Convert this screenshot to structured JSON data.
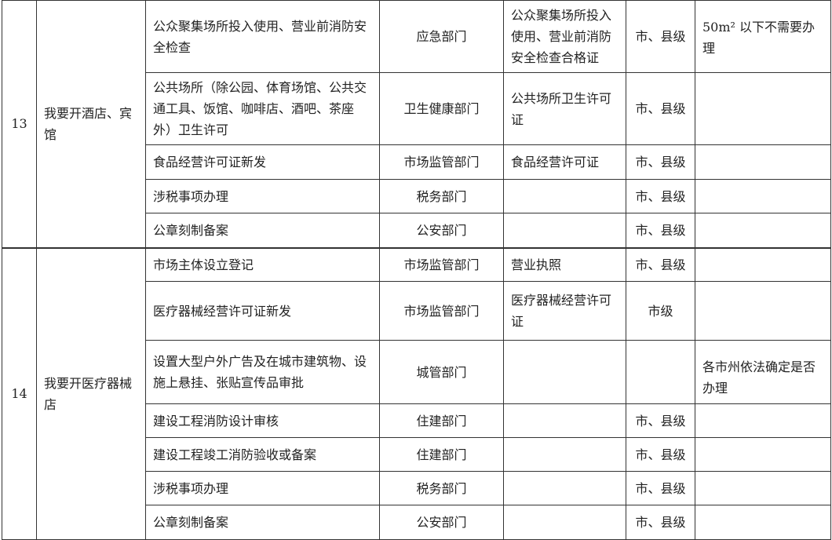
{
  "groups": [
    {
      "no": "13",
      "title": "我要开酒店、宾馆",
      "rows": [
        {
          "item": "公众聚集场所投入使用、营业前消防安全检查",
          "dept": "应急部门",
          "cert": "公众聚集场所投入使用、营业前消防安全检查合格证",
          "level": "市、县级",
          "note": "50m² 以下不需要办理"
        },
        {
          "item": "公共场所（除公园、体育场馆、公共交通工具、饭馆、咖啡店、酒吧、茶座外）卫生许可",
          "dept": "卫生健康部门",
          "cert": "公共场所卫生许可证",
          "level": "市、县级",
          "note": ""
        },
        {
          "item": "食品经营许可证新发",
          "dept": "市场监管部门",
          "cert": "食品经营许可证",
          "level": "市、县级",
          "note": ""
        },
        {
          "item": "涉税事项办理",
          "dept": "税务部门",
          "cert": "",
          "level": "市、县级",
          "note": ""
        },
        {
          "item": "公章刻制备案",
          "dept": "公安部门",
          "cert": "",
          "level": "市、县级",
          "note": ""
        }
      ]
    },
    {
      "no": "14",
      "title": "我要开医疗器械店",
      "rows": [
        {
          "item": "市场主体设立登记",
          "dept": "市场监管部门",
          "cert": "营业执照",
          "level": "市、县级",
          "note": ""
        },
        {
          "item": "医疗器械经营许可证新发",
          "dept": "市场监管部门",
          "cert": "医疗器械经营许可证",
          "level": "市级",
          "note": ""
        },
        {
          "item": "设置大型户外广告及在城市建筑物、设施上悬挂、张贴宣传品审批",
          "dept": "城管部门",
          "cert": "",
          "level": "",
          "note": "各市州依法确定是否办理"
        },
        {
          "item": "建设工程消防设计审核",
          "dept": "住建部门",
          "cert": "",
          "level": "市、县级",
          "note": ""
        },
        {
          "item": "建设工程竣工消防验收或备案",
          "dept": "住建部门",
          "cert": "",
          "level": "市、县级",
          "note": ""
        },
        {
          "item": "涉税事项办理",
          "dept": "税务部门",
          "cert": "",
          "level": "市、县级",
          "note": ""
        },
        {
          "item": "公章刻制备案",
          "dept": "公安部门",
          "cert": "",
          "level": "市、县级",
          "note": ""
        }
      ]
    }
  ]
}
